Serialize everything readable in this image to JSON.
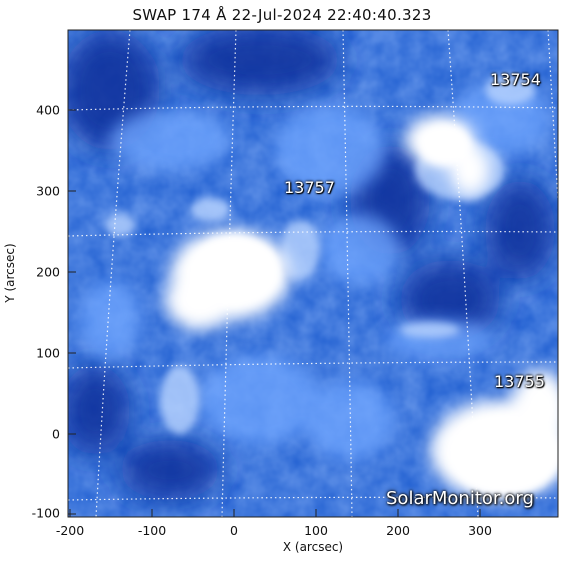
{
  "title": "SWAP 174 Å 22-Jul-2024 22:40:40.323",
  "axes": {
    "xlabel": "X (arcsec)",
    "ylabel": "Y (arcsec)",
    "xticks": [
      "-200",
      "-100",
      "0",
      "100",
      "200",
      "300"
    ],
    "yticks": [
      "400",
      "300",
      "200",
      "100",
      "0",
      "-100"
    ]
  },
  "regions": [
    {
      "label": "13754"
    },
    {
      "label": "13757"
    },
    {
      "label": "13755"
    }
  ],
  "watermark": "SolarMonitor.org",
  "colors": {
    "background_blue": "#1f5ed0",
    "dark_blue": "#0a2f9a",
    "bright": "#ffffff",
    "grid": "#ffffff"
  }
}
